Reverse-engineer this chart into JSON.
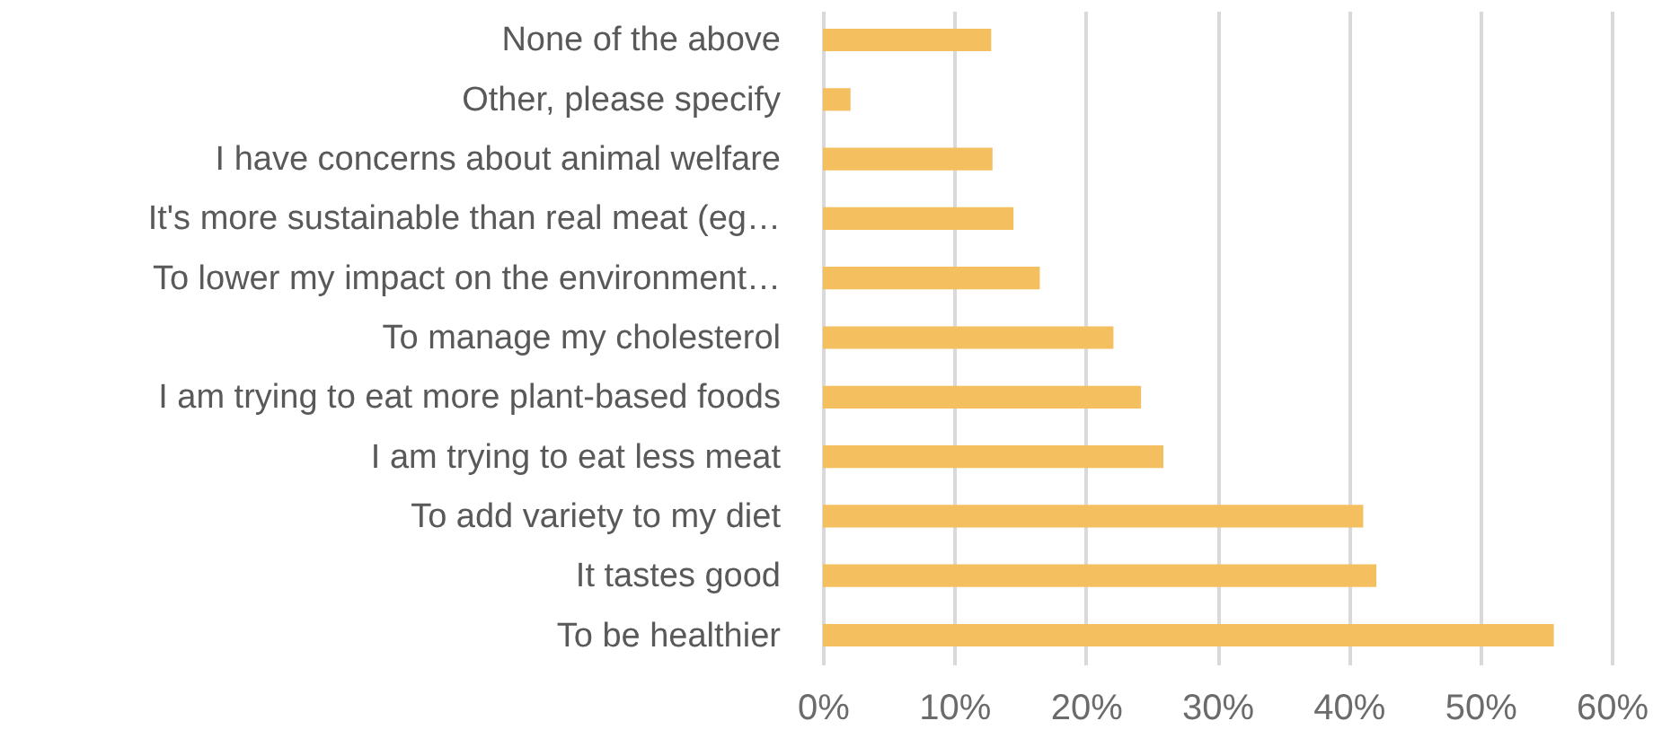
{
  "chart_data": {
    "type": "bar",
    "orientation": "horizontal",
    "categories": [
      "None of the above",
      "Other, please specify",
      "I have concerns about animal welfare",
      "It's more sustainable than real meat (eg…",
      "To lower my impact on the environment…",
      "To manage my cholesterol",
      "I am trying to eat more plant-based foods",
      "I am trying to eat less meat",
      "To add variety to my diet",
      "It tastes good",
      "To be healthier"
    ],
    "values": [
      12.8,
      2.1,
      12.9,
      14.5,
      16.5,
      22.1,
      24.2,
      25.9,
      41.1,
      42.1,
      55.6
    ],
    "color": "#f4bf5e",
    "xlim": [
      0,
      60
    ],
    "xticks": [
      {
        "value": 0,
        "label": "0%"
      },
      {
        "value": 10,
        "label": "10%"
      },
      {
        "value": 20,
        "label": "20%"
      },
      {
        "value": 30,
        "label": "30%"
      },
      {
        "value": 40,
        "label": "40%"
      },
      {
        "value": 50,
        "label": "50%"
      },
      {
        "value": 60,
        "label": "60%"
      }
    ],
    "grid": "x"
  }
}
